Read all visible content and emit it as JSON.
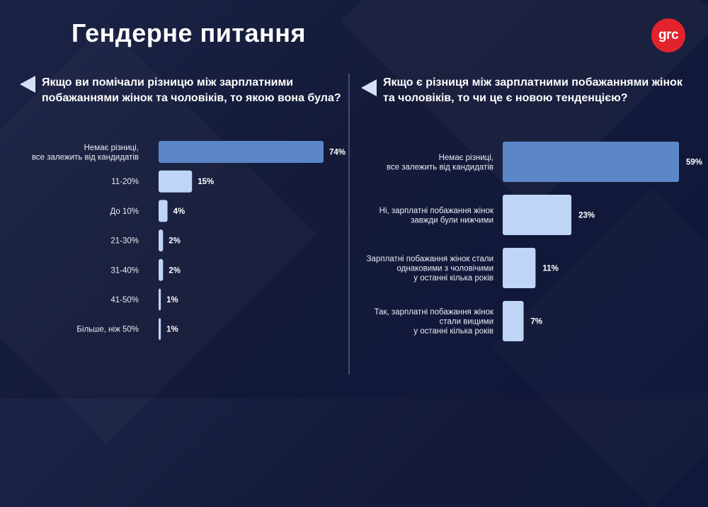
{
  "title": "Гендерне питання",
  "logo": "grc",
  "colors": {
    "bar_primary": "#5b86c8",
    "bar_secondary": "#bfd5f8",
    "logo_red": "#e3232c"
  },
  "chart_data": [
    {
      "type": "bar",
      "orientation": "horizontal",
      "title": "Якщо ви помічали різницю між зарплатними побажаннями жінок та чоловіків, то якою вона була?",
      "categories": [
        [
          "Немає різниці,",
          "все залежить від кандидатів"
        ],
        [
          "11-20%"
        ],
        [
          "До 10%"
        ],
        [
          "21-30%"
        ],
        [
          "31-40%"
        ],
        [
          "41-50%"
        ],
        [
          "Більше, ніж 50%"
        ]
      ],
      "values": [
        74,
        15,
        4,
        2,
        2,
        1,
        1
      ],
      "value_labels": [
        "74%",
        "15%",
        "4%",
        "2%",
        "2%",
        "1%",
        "1%"
      ],
      "unit": "%",
      "xlim": [
        0,
        74
      ]
    },
    {
      "type": "bar",
      "orientation": "horizontal",
      "title": "Якщо є різниця між зарплатними побажаннями жінок та чоловіків, то чи це є новою тенденцією?",
      "categories": [
        [
          "Немає різниці,",
          "все залежить від кандидатів"
        ],
        [
          "Ні, зарплатні побажання жінок",
          "завжди були нижчими"
        ],
        [
          "Зарплатні побажання жінок стали",
          "однаковими з чоловічими",
          "у останні кілька років"
        ],
        [
          "Так, зарплатні побажання жінок",
          "стали вищими",
          "у останні кілька років"
        ]
      ],
      "values": [
        59,
        23,
        11,
        7
      ],
      "value_labels": [
        "59%",
        "23%",
        "11%",
        "7%"
      ],
      "unit": "%",
      "xlim": [
        0,
        59
      ]
    }
  ]
}
